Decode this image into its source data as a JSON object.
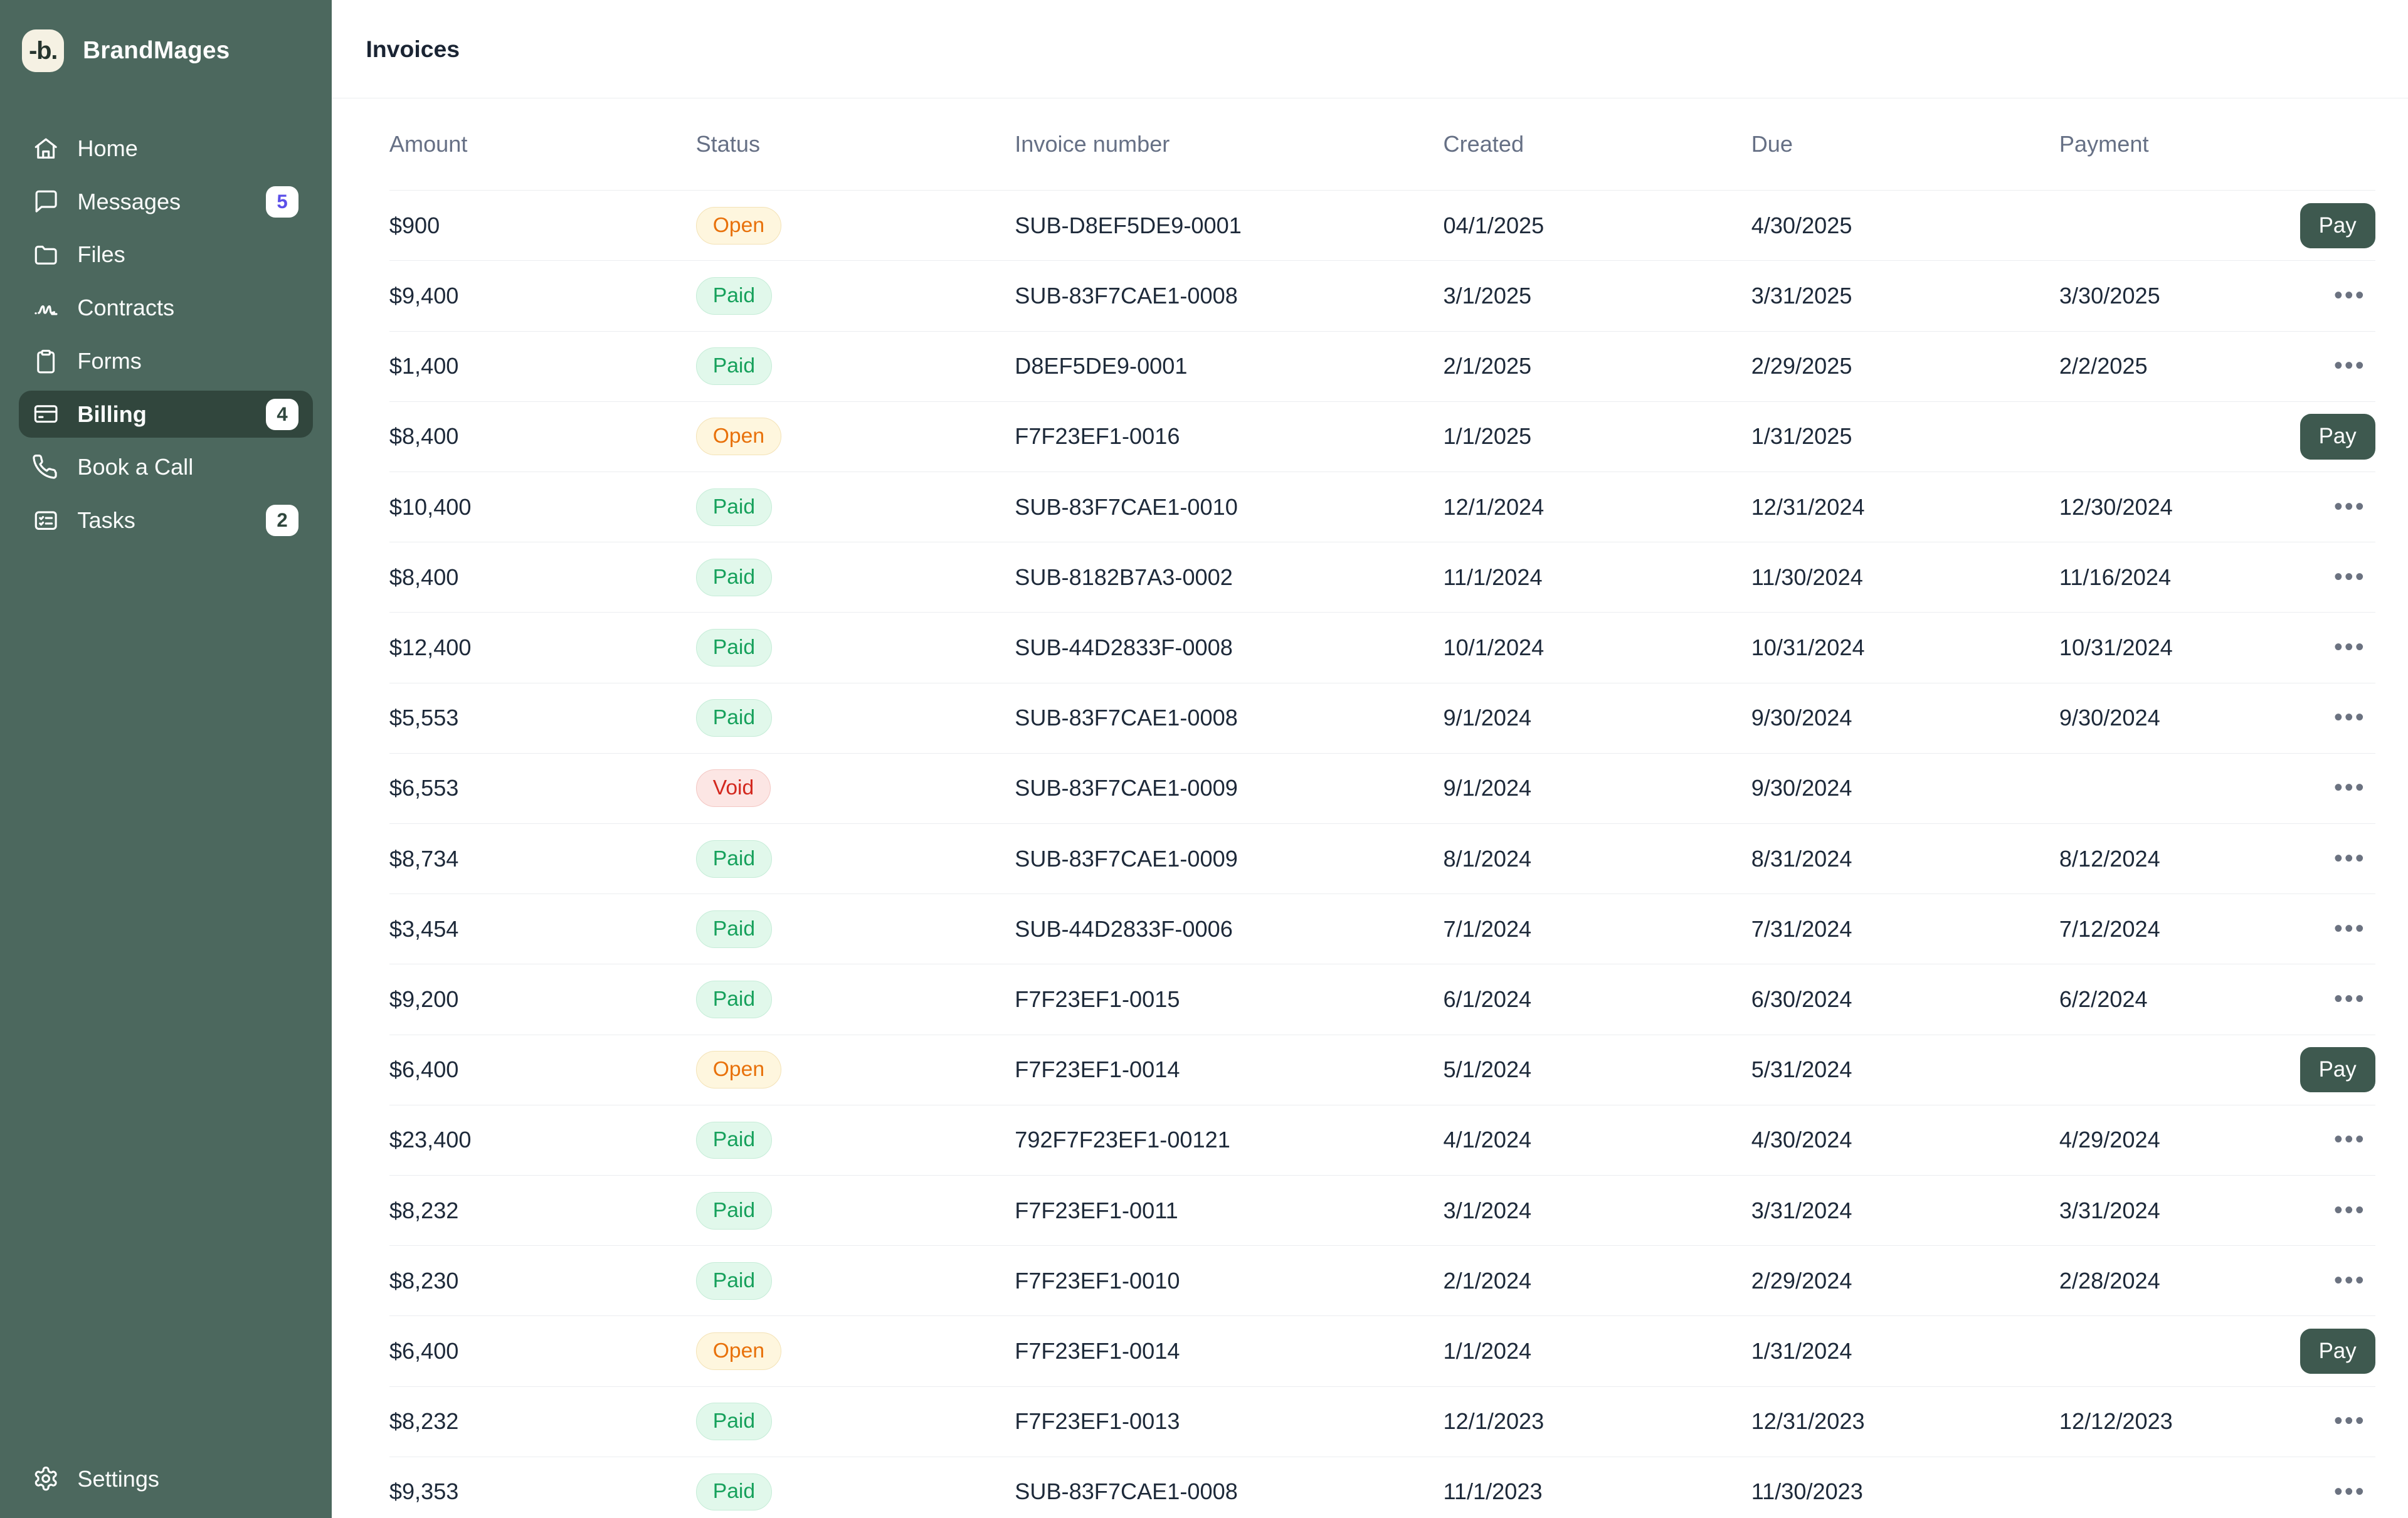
{
  "sidebar": {
    "brand": {
      "logo_text": "-b.",
      "name": "BrandMages"
    },
    "items": [
      {
        "label": "Home",
        "icon": "home"
      },
      {
        "label": "Messages",
        "icon": "message",
        "badge": "5",
        "badge_color": "#5B4FE9"
      },
      {
        "label": "Files",
        "icon": "folder"
      },
      {
        "label": "Contracts",
        "icon": "signature"
      },
      {
        "label": "Forms",
        "icon": "clipboard"
      },
      {
        "label": "Billing",
        "icon": "card",
        "badge": "4",
        "badge_color": "#2F463D",
        "active": true
      },
      {
        "label": "Book a Call",
        "icon": "phone"
      },
      {
        "label": "Tasks",
        "icon": "tasks",
        "badge": "2",
        "badge_color": "#2F463D"
      }
    ],
    "settings": {
      "label": "Settings",
      "icon": "gear"
    }
  },
  "header": {
    "title": "Invoices"
  },
  "labels": {
    "pay": "Pay",
    "menu": "•••"
  },
  "table": {
    "columns": [
      "Amount",
      "Status",
      "Invoice number",
      "Created",
      "Due",
      "Payment"
    ],
    "rows": [
      {
        "amount": "$900",
        "status": "Open",
        "invoice": "SUB-D8EF5DE9-0001",
        "created": "04/1/2025",
        "due": "4/30/2025",
        "payment": "",
        "action": "pay"
      },
      {
        "amount": "$9,400",
        "status": "Paid",
        "invoice": "SUB-83F7CAE1-0008",
        "created": "3/1/2025",
        "due": "3/31/2025",
        "payment": "3/30/2025",
        "action": "menu"
      },
      {
        "amount": "$1,400",
        "status": "Paid",
        "invoice": "D8EF5DE9-0001",
        "created": "2/1/2025",
        "due": "2/29/2025",
        "payment": "2/2/2025",
        "action": "menu"
      },
      {
        "amount": "$8,400",
        "status": "Open",
        "invoice": "F7F23EF1-0016",
        "created": "1/1/2025",
        "due": "1/31/2025",
        "payment": "",
        "action": "pay"
      },
      {
        "amount": "$10,400",
        "status": "Paid",
        "invoice": "SUB-83F7CAE1-0010",
        "created": "12/1/2024",
        "due": "12/31/2024",
        "payment": "12/30/2024",
        "action": "menu"
      },
      {
        "amount": "$8,400",
        "status": "Paid",
        "invoice": "SUB-8182B7A3-0002",
        "created": "11/1/2024",
        "due": "11/30/2024",
        "payment": "11/16/2024",
        "action": "menu"
      },
      {
        "amount": "$12,400",
        "status": "Paid",
        "invoice": "SUB-44D2833F-0008",
        "created": "10/1/2024",
        "due": "10/31/2024",
        "payment": "10/31/2024",
        "action": "menu"
      },
      {
        "amount": "$5,553",
        "status": "Paid",
        "invoice": "SUB-83F7CAE1-0008",
        "created": "9/1/2024",
        "due": "9/30/2024",
        "payment": "9/30/2024",
        "action": "menu"
      },
      {
        "amount": "$6,553",
        "status": "Void",
        "invoice": "SUB-83F7CAE1-0009",
        "created": "9/1/2024",
        "due": "9/30/2024",
        "payment": "",
        "action": "menu"
      },
      {
        "amount": "$8,734",
        "status": "Paid",
        "invoice": "SUB-83F7CAE1-0009",
        "created": "8/1/2024",
        "due": "8/31/2024",
        "payment": "8/12/2024",
        "action": "menu"
      },
      {
        "amount": "$3,454",
        "status": "Paid",
        "invoice": "SUB-44D2833F-0006",
        "created": "7/1/2024",
        "due": "7/31/2024",
        "payment": "7/12/2024",
        "action": "menu"
      },
      {
        "amount": "$9,200",
        "status": "Paid",
        "invoice": "F7F23EF1-0015",
        "created": "6/1/2024",
        "due": "6/30/2024",
        "payment": "6/2/2024",
        "action": "menu"
      },
      {
        "amount": "$6,400",
        "status": "Open",
        "invoice": "F7F23EF1-0014",
        "created": "5/1/2024",
        "due": "5/31/2024",
        "payment": "",
        "action": "pay"
      },
      {
        "amount": "$23,400",
        "status": "Paid",
        "invoice": "792F7F23EF1-00121",
        "created": "4/1/2024",
        "due": "4/30/2024",
        "payment": "4/29/2024",
        "action": "menu"
      },
      {
        "amount": "$8,232",
        "status": "Paid",
        "invoice": "F7F23EF1-0011",
        "created": "3/1/2024",
        "due": "3/31/2024",
        "payment": "3/31/2024",
        "action": "menu"
      },
      {
        "amount": "$8,230",
        "status": "Paid",
        "invoice": "F7F23EF1-0010",
        "created": "2/1/2024",
        "due": "2/29/2024",
        "payment": "2/28/2024",
        "action": "menu"
      },
      {
        "amount": "$6,400",
        "status": "Open",
        "invoice": "F7F23EF1-0014",
        "created": "1/1/2024",
        "due": "1/31/2024",
        "payment": "",
        "action": "pay"
      },
      {
        "amount": "$8,232",
        "status": "Paid",
        "invoice": "F7F23EF1-0013",
        "created": "12/1/2023",
        "due": "12/31/2023",
        "payment": "12/12/2023",
        "action": "menu"
      },
      {
        "amount": "$9,353",
        "status": "Paid",
        "invoice": "SUB-83F7CAE1-0008",
        "created": "11/1/2023",
        "due": "11/30/2023",
        "payment": "",
        "action": "menu"
      }
    ]
  },
  "colors": {
    "sidebar_bg": "#4C685E",
    "sidebar_active_bg": "#31463D",
    "logo_tile_bg": "#F5F1E3",
    "logo_text": "#26352E",
    "accent_button_bg": "#3E594F",
    "open_text": "#E8710A",
    "open_bg": "#FEF6DE",
    "open_border": "#F3E2B6",
    "paid_text": "#17A15C",
    "paid_bg": "#E1F8EB",
    "paid_border": "#C5ECD7",
    "void_text": "#D3281E",
    "void_bg": "#FCE6E4",
    "void_border": "#F3C6C2",
    "heading_text": "#1A2433",
    "body_text": "#1D2939",
    "muted_text": "#667085",
    "divider": "#EBEDF0"
  }
}
